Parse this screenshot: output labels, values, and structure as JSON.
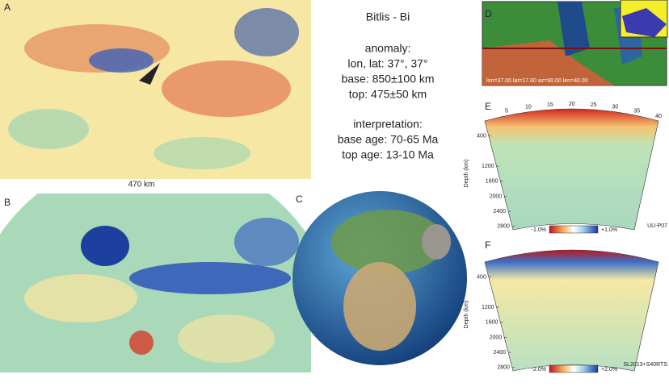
{
  "panels": {
    "a": "A",
    "b": "B",
    "c": "C",
    "d": "D",
    "e": "E",
    "f": "F"
  },
  "title": "Bitlis - Bi",
  "anomaly": {
    "heading": "anomaly:",
    "lonlat": "lon, lat: 37°, 37°",
    "base": "base: 850±100 km",
    "top": "top: 475±50 km"
  },
  "interpretation": {
    "heading": "interpretation:",
    "base_age": "base age: 70-65 Ma",
    "top_age": "top age: 13-10 Ma"
  },
  "scale_label": "470 km",
  "section_d": {
    "caption": "lon=37.00 lat=17.00 az=90.00 len=40.00"
  },
  "section_e": {
    "x_ticks": [
      5,
      10,
      15,
      20,
      25,
      30,
      35,
      40
    ],
    "depth_ticks": [
      400,
      1200,
      1600,
      2000,
      2400,
      2800
    ],
    "depth_label": "Depth (km)",
    "colorbar_min": "-1.0%",
    "colorbar_max": "+1.0%",
    "model": "UU-P07"
  },
  "section_f": {
    "depth_ticks": [
      400,
      1200,
      1600,
      2000,
      2400,
      2800
    ],
    "depth_label": "Depth (km)",
    "colorbar_min": "-2.0%",
    "colorbar_max": "+2.0%",
    "model": "SL2013+S40RTS"
  }
}
